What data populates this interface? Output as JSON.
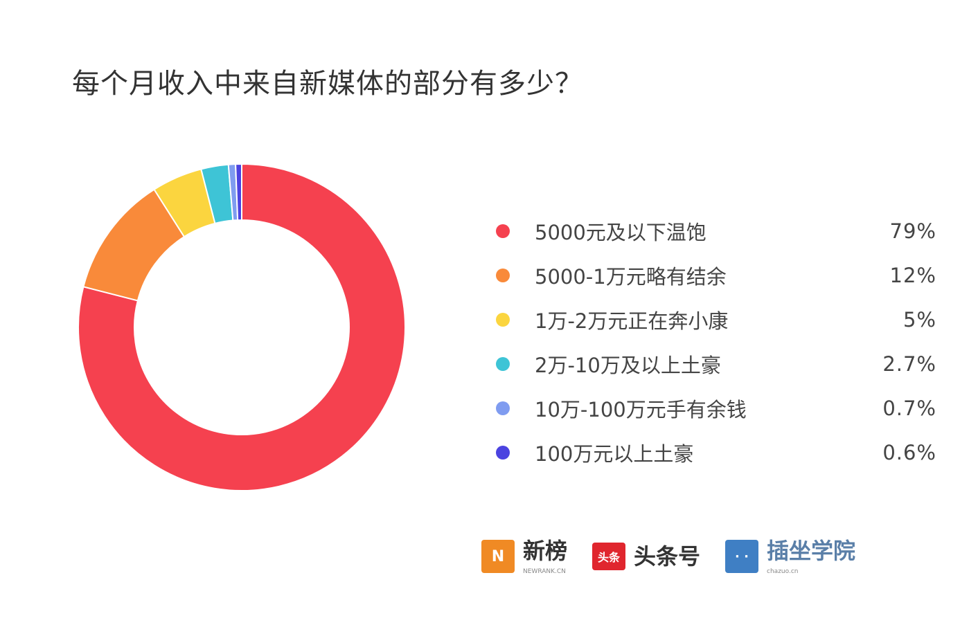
{
  "chart_data": {
    "type": "pie",
    "title": "每个月收入中来自新媒体的部分有多少？",
    "donut": true,
    "legend_position": "right",
    "categories": [
      "5000元及以下温饱",
      "5000-1万元略有结余",
      "1万-2万元正在奔小康",
      "2万-10万及以上土豪",
      "10万-100万元手有余钱",
      "100万元以上土豪"
    ],
    "values": [
      79,
      12,
      5,
      2.7,
      0.7,
      0.6
    ],
    "labels": [
      "79%",
      "12%",
      "5%",
      "2.7%",
      "0.7%",
      "0.6%"
    ],
    "colors": [
      "#f5414f",
      "#f98a3a",
      "#fbd53f",
      "#3ec4d6",
      "#7f9cf0",
      "#4b43e0"
    ]
  },
  "logos": [
    {
      "name": "新榜",
      "sub": "NEWRANK.CN",
      "color": "#f08a24",
      "mark": "N"
    },
    {
      "name": "头条号",
      "sub": "",
      "color": "#e0262e",
      "mark": "头条"
    },
    {
      "name": "插坐学院",
      "sub": "chazuo.cn",
      "color": "#3f7fc4",
      "mark": "· ·"
    }
  ]
}
